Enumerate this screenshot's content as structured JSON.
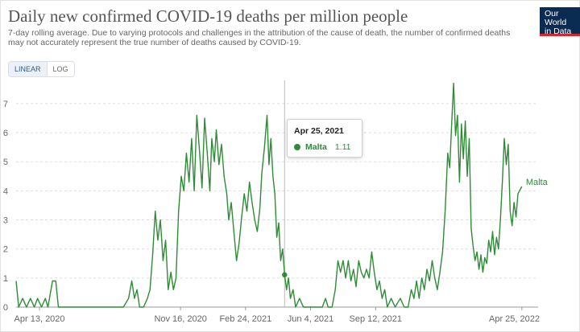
{
  "header": {
    "title": "Daily new confirmed COVID-19 deaths per million people",
    "subtitle": "7-day rolling average. Due to varying protocols and challenges in the attribution of the cause of death, the number of confirmed deaths may not accurately represent the true number of deaths caused by COVID-19.",
    "logo_line1": "Our World",
    "logo_line2": "in Data"
  },
  "controls": {
    "linear_label": "LINEAR",
    "log_label": "LOG",
    "selected": "LINEAR"
  },
  "tooltip": {
    "date": "Apr 25, 2021",
    "series": "Malta",
    "value": "1.11"
  },
  "colors": {
    "series": "#2e8b36",
    "grid": "#dddddd",
    "axis_text": "#666666",
    "logo_bg": "#0a2b52",
    "logo_accent": "#d8282f"
  },
  "chart_data": {
    "type": "line",
    "title": "Daily new confirmed COVID-19 deaths per million people",
    "xlabel": "",
    "ylabel": "",
    "ylim": [
      0,
      7.8
    ],
    "yticks": [
      0,
      1,
      2,
      3,
      4,
      5,
      6,
      7
    ],
    "xlim": [
      "2020-03-08",
      "2022-05-20"
    ],
    "xticks": [
      {
        "date": "2020-04-13",
        "label": "Apr 13, 2020"
      },
      {
        "date": "2020-11-16",
        "label": "Nov 16, 2020"
      },
      {
        "date": "2021-02-24",
        "label": "Feb 24, 2021"
      },
      {
        "date": "2021-06-04",
        "label": "Jun 4, 2021"
      },
      {
        "date": "2021-09-12",
        "label": "Sep 12, 2021"
      },
      {
        "date": "2022-04-25",
        "label": "Apr 25, 2022"
      }
    ],
    "grid": true,
    "hover_date": "2021-04-25",
    "end_label": "Malta",
    "series": [
      {
        "name": "Malta",
        "points": [
          [
            "2020-03-08",
            0.9
          ],
          [
            "2020-03-12",
            0
          ],
          [
            "2020-03-18",
            0.3
          ],
          [
            "2020-03-24",
            0
          ],
          [
            "2020-03-30",
            0.3
          ],
          [
            "2020-04-05",
            0
          ],
          [
            "2020-04-10",
            0.3
          ],
          [
            "2020-04-16",
            0
          ],
          [
            "2020-04-22",
            0.3
          ],
          [
            "2020-04-26",
            0
          ],
          [
            "2020-05-03",
            0.9
          ],
          [
            "2020-05-08",
            0.9
          ],
          [
            "2020-05-12",
            0
          ],
          [
            "2020-06-01",
            0
          ],
          [
            "2020-07-01",
            0
          ],
          [
            "2020-08-01",
            0
          ],
          [
            "2020-08-20",
            0
          ],
          [
            "2020-08-28",
            0.3
          ],
          [
            "2020-09-02",
            0.9
          ],
          [
            "2020-09-06",
            0.3
          ],
          [
            "2020-09-10",
            0.6
          ],
          [
            "2020-09-14",
            0
          ],
          [
            "2020-09-20",
            0
          ],
          [
            "2020-09-26",
            0.3
          ],
          [
            "2020-09-30",
            0.6
          ],
          [
            "2020-10-04",
            1.8
          ],
          [
            "2020-10-08",
            3.3
          ],
          [
            "2020-10-12",
            2.3
          ],
          [
            "2020-10-16",
            3.0
          ],
          [
            "2020-10-20",
            1.6
          ],
          [
            "2020-10-24",
            2.3
          ],
          [
            "2020-10-28",
            0.6
          ],
          [
            "2020-11-01",
            1.2
          ],
          [
            "2020-11-05",
            0.6
          ],
          [
            "2020-11-09",
            1.0
          ],
          [
            "2020-11-13",
            3.3
          ],
          [
            "2020-11-17",
            4.5
          ],
          [
            "2020-11-21",
            4.0
          ],
          [
            "2020-11-25",
            5.3
          ],
          [
            "2020-11-29",
            4.3
          ],
          [
            "2020-12-03",
            5.8
          ],
          [
            "2020-12-07",
            4.0
          ],
          [
            "2020-12-11",
            6.6
          ],
          [
            "2020-12-15",
            5.4
          ],
          [
            "2020-12-19",
            4.1
          ],
          [
            "2020-12-23",
            6.5
          ],
          [
            "2020-12-27",
            5.3
          ],
          [
            "2020-12-31",
            4.0
          ],
          [
            "2021-01-03",
            5.8
          ],
          [
            "2021-01-07",
            5.0
          ],
          [
            "2021-01-10",
            6.1
          ],
          [
            "2021-01-14",
            4.9
          ],
          [
            "2021-01-18",
            5.6
          ],
          [
            "2021-01-22",
            4.5
          ],
          [
            "2021-01-26",
            3.9
          ],
          [
            "2021-01-29",
            3.0
          ],
          [
            "2021-02-02",
            3.6
          ],
          [
            "2021-02-06",
            2.6
          ],
          [
            "2021-02-10",
            1.6
          ],
          [
            "2021-02-14",
            2.2
          ],
          [
            "2021-02-18",
            3.1
          ],
          [
            "2021-02-22",
            3.9
          ],
          [
            "2021-02-26",
            3.3
          ],
          [
            "2021-03-02",
            4.3
          ],
          [
            "2021-03-06",
            3.6
          ],
          [
            "2021-03-10",
            3.0
          ],
          [
            "2021-03-14",
            2.6
          ],
          [
            "2021-03-18",
            3.4
          ],
          [
            "2021-03-21",
            4.6
          ],
          [
            "2021-03-25",
            5.5
          ],
          [
            "2021-03-29",
            6.6
          ],
          [
            "2021-04-01",
            4.9
          ],
          [
            "2021-04-04",
            5.8
          ],
          [
            "2021-04-07",
            4.5
          ],
          [
            "2021-04-10",
            3.9
          ],
          [
            "2021-04-13",
            2.4
          ],
          [
            "2021-04-16",
            2.9
          ],
          [
            "2021-04-19",
            1.6
          ],
          [
            "2021-04-22",
            2.0
          ],
          [
            "2021-04-25",
            1.11
          ],
          [
            "2021-04-28",
            0.6
          ],
          [
            "2021-05-01",
            1.0
          ],
          [
            "2021-05-04",
            0.3
          ],
          [
            "2021-05-08",
            0.6
          ],
          [
            "2021-05-12",
            0
          ],
          [
            "2021-05-18",
            0.3
          ],
          [
            "2021-05-24",
            0
          ],
          [
            "2021-06-10",
            0
          ],
          [
            "2021-06-22",
            0
          ],
          [
            "2021-06-27",
            0.3
          ],
          [
            "2021-07-01",
            0
          ],
          [
            "2021-07-07",
            0
          ],
          [
            "2021-07-12",
            0.6
          ],
          [
            "2021-07-16",
            1.6
          ],
          [
            "2021-07-20",
            1.2
          ],
          [
            "2021-07-24",
            1.6
          ],
          [
            "2021-07-28",
            1.0
          ],
          [
            "2021-08-01",
            1.6
          ],
          [
            "2021-08-05",
            0.9
          ],
          [
            "2021-08-09",
            1.3
          ],
          [
            "2021-08-13",
            0.7
          ],
          [
            "2021-08-17",
            1.6
          ],
          [
            "2021-08-21",
            1.2
          ],
          [
            "2021-08-25",
            1.0
          ],
          [
            "2021-08-29",
            1.3
          ],
          [
            "2021-09-02",
            1.0
          ],
          [
            "2021-09-06",
            1.9
          ],
          [
            "2021-09-10",
            1.2
          ],
          [
            "2021-09-14",
            0.6
          ],
          [
            "2021-09-18",
            0.9
          ],
          [
            "2021-09-22",
            0.3
          ],
          [
            "2021-09-26",
            0.6
          ],
          [
            "2021-09-30",
            0
          ],
          [
            "2021-10-06",
            0.3
          ],
          [
            "2021-10-12",
            0
          ],
          [
            "2021-10-20",
            0.3
          ],
          [
            "2021-10-26",
            0
          ],
          [
            "2021-11-01",
            0
          ],
          [
            "2021-11-06",
            0.6
          ],
          [
            "2021-11-10",
            0.3
          ],
          [
            "2021-11-14",
            0.9
          ],
          [
            "2021-11-18",
            0.3
          ],
          [
            "2021-11-22",
            1.0
          ],
          [
            "2021-11-26",
            0.6
          ],
          [
            "2021-11-30",
            1.3
          ],
          [
            "2021-12-04",
            0.9
          ],
          [
            "2021-12-08",
            1.6
          ],
          [
            "2021-12-12",
            1.0
          ],
          [
            "2021-12-16",
            0.6
          ],
          [
            "2021-12-20",
            1.2
          ],
          [
            "2021-12-24",
            1.9
          ],
          [
            "2021-12-28",
            3.3
          ],
          [
            "2022-01-01",
            5.3
          ],
          [
            "2022-01-04",
            4.8
          ],
          [
            "2022-01-07",
            6.3
          ],
          [
            "2022-01-10",
            7.7
          ],
          [
            "2022-01-13",
            5.9
          ],
          [
            "2022-01-16",
            6.6
          ],
          [
            "2022-01-19",
            4.3
          ],
          [
            "2022-01-22",
            6.3
          ],
          [
            "2022-01-25",
            5.1
          ],
          [
            "2022-01-28",
            6.4
          ],
          [
            "2022-01-31",
            4.5
          ],
          [
            "2022-02-03",
            5.8
          ],
          [
            "2022-02-06",
            2.7
          ],
          [
            "2022-02-09",
            2.1
          ],
          [
            "2022-02-12",
            1.6
          ],
          [
            "2022-02-15",
            1.9
          ],
          [
            "2022-02-18",
            1.3
          ],
          [
            "2022-02-21",
            1.8
          ],
          [
            "2022-02-24",
            1.2
          ],
          [
            "2022-02-27",
            1.7
          ],
          [
            "2022-03-02",
            1.5
          ],
          [
            "2022-03-05",
            2.3
          ],
          [
            "2022-03-08",
            1.9
          ],
          [
            "2022-03-11",
            2.6
          ],
          [
            "2022-03-14",
            1.8
          ],
          [
            "2022-03-17",
            2.4
          ],
          [
            "2022-03-20",
            2.0
          ],
          [
            "2022-03-23",
            3.0
          ],
          [
            "2022-03-26",
            4.3
          ],
          [
            "2022-03-29",
            5.8
          ],
          [
            "2022-04-01",
            4.9
          ],
          [
            "2022-04-04",
            5.6
          ],
          [
            "2022-04-07",
            3.3
          ],
          [
            "2022-04-10",
            2.8
          ],
          [
            "2022-04-13",
            3.6
          ],
          [
            "2022-04-16",
            3.1
          ],
          [
            "2022-04-19",
            3.9
          ],
          [
            "2022-04-25",
            4.15
          ]
        ]
      }
    ]
  }
}
